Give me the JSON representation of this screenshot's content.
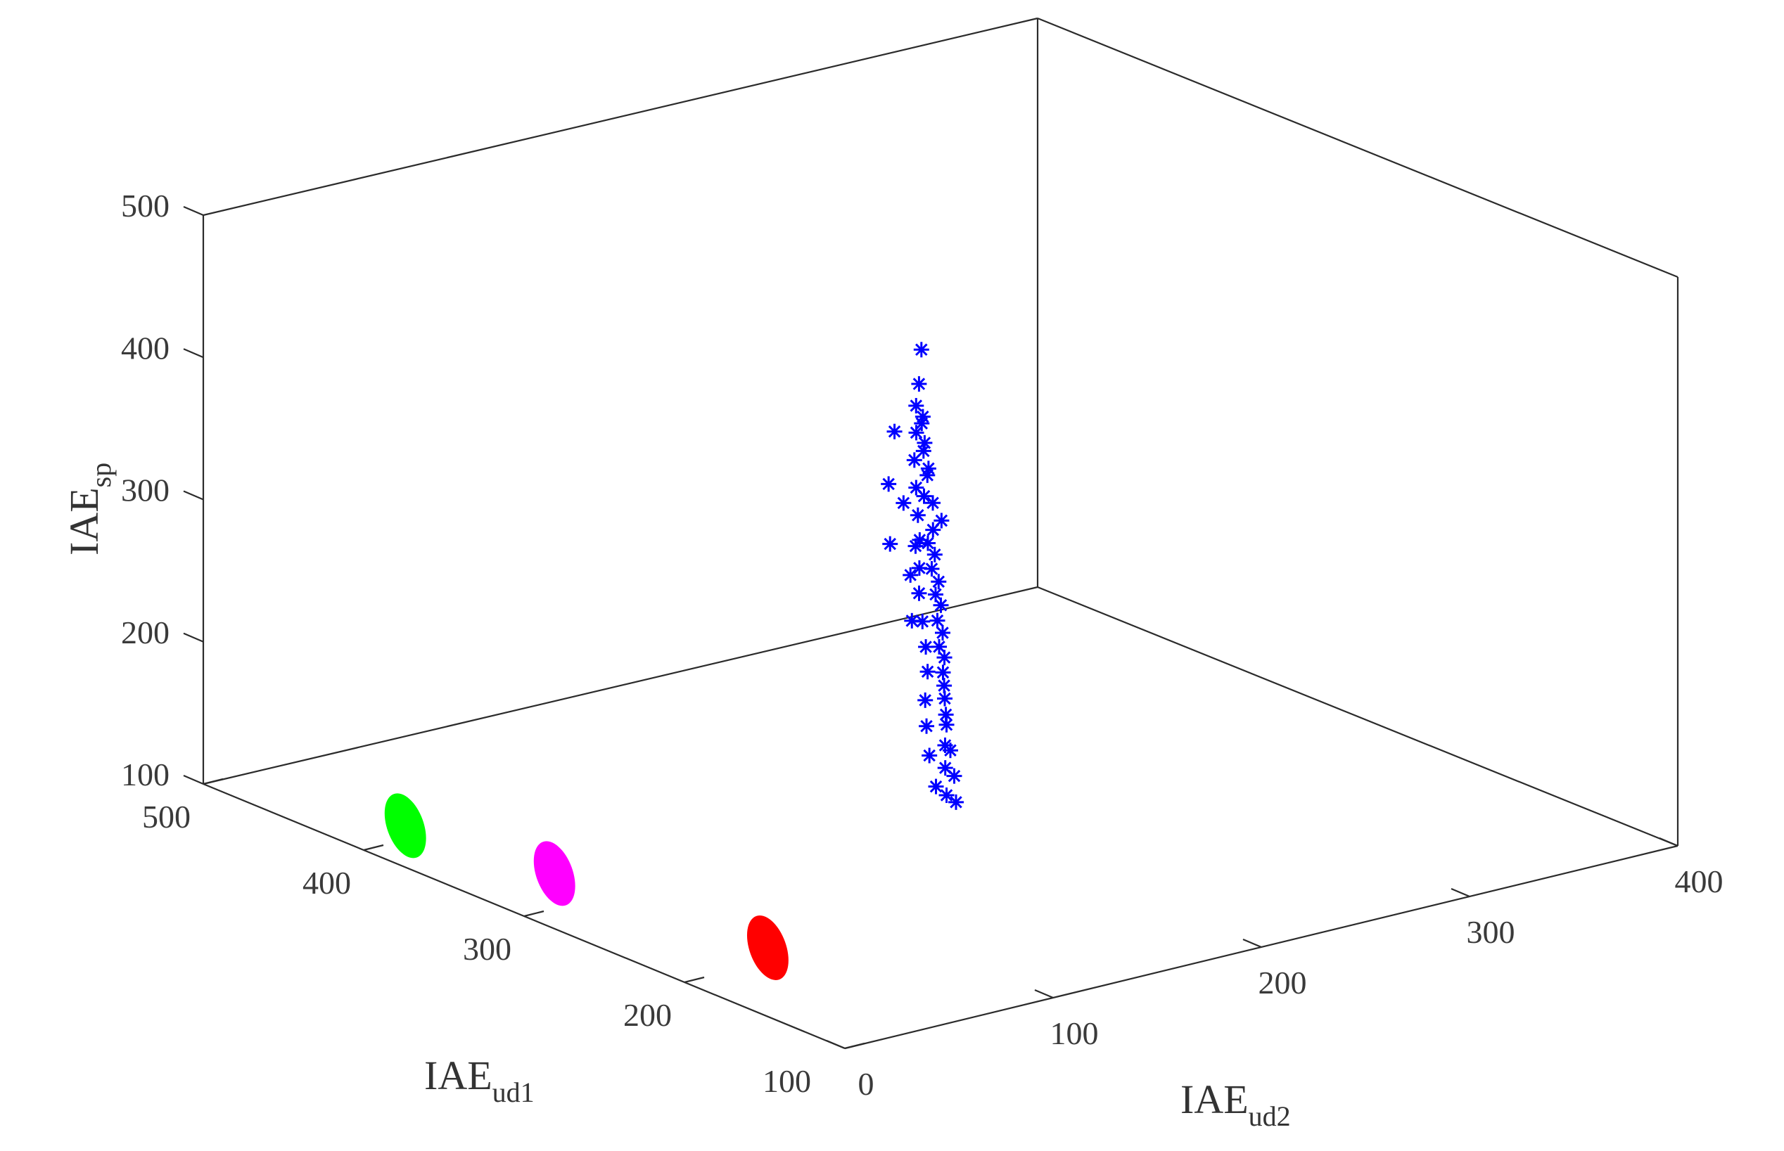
{
  "chart_data": {
    "type": "scatter3d",
    "title": "",
    "xlabel": {
      "base": "IAE",
      "sub": "ud1"
    },
    "ylabel": {
      "base": "IAE",
      "sub": "ud2"
    },
    "zlabel": {
      "base": "IAE",
      "sub": "sp"
    },
    "xlim": [
      100,
      500
    ],
    "ylim": [
      0,
      400
    ],
    "zlim": [
      100,
      500
    ],
    "xticks": [
      "100",
      "200",
      "300",
      "400",
      "500"
    ],
    "yticks": [
      "0",
      "100",
      "200",
      "300",
      "400"
    ],
    "zticks": [
      "100",
      "200",
      "300",
      "400",
      "500"
    ],
    "grid": false,
    "colors": {
      "blue": "#0000ff",
      "green": "#00ff00",
      "magenta": "#ff00ff",
      "red": "#ff0000",
      "axis": "#2b2b2b"
    },
    "series": [
      {
        "marker": "asterisk",
        "color": "blue",
        "points": [
          [
            180,
            115,
            195
          ],
          [
            185,
            118,
            210
          ],
          [
            190,
            120,
            225
          ],
          [
            195,
            122,
            240
          ],
          [
            200,
            125,
            255
          ],
          [
            205,
            128,
            270
          ],
          [
            210,
            130,
            285
          ],
          [
            215,
            133,
            300
          ],
          [
            220,
            136,
            315
          ],
          [
            225,
            138,
            330
          ],
          [
            230,
            140,
            345
          ],
          [
            228,
            145,
            360
          ],
          [
            235,
            142,
            375
          ],
          [
            240,
            148,
            390
          ],
          [
            245,
            150,
            405
          ],
          [
            250,
            153,
            420
          ],
          [
            255,
            155,
            440
          ],
          [
            260,
            160,
            460
          ],
          [
            248,
            135,
            380
          ],
          [
            238,
            128,
            345
          ],
          [
            182,
            112,
            200
          ],
          [
            188,
            116,
            215
          ],
          [
            192,
            119,
            228
          ],
          [
            198,
            124,
            245
          ],
          [
            203,
            127,
            262
          ],
          [
            208,
            131,
            278
          ],
          [
            213,
            134,
            292
          ],
          [
            218,
            137,
            308
          ],
          [
            222,
            139,
            322
          ],
          [
            227,
            141,
            338
          ],
          [
            232,
            144,
            352
          ],
          [
            236,
            147,
            368
          ],
          [
            242,
            149,
            384
          ],
          [
            247,
            151,
            398
          ],
          [
            252,
            154,
            414
          ],
          [
            186,
            110,
            205
          ],
          [
            194,
            113,
            222
          ],
          [
            201,
            117,
            238
          ],
          [
            207,
            121,
            252
          ],
          [
            212,
            126,
            268
          ],
          [
            217,
            129,
            282
          ],
          [
            223,
            132,
            296
          ],
          [
            229,
            135,
            312
          ],
          [
            234,
            139,
            326
          ],
          [
            239,
            143,
            342
          ],
          [
            244,
            146,
            356
          ],
          [
            249,
            149,
            372
          ],
          [
            254,
            152,
            388
          ],
          [
            258,
            156,
            404
          ],
          [
            262,
            159,
            420
          ],
          [
            214,
            120,
            305
          ],
          [
            224,
            127,
            330
          ],
          [
            240,
            136,
            370
          ],
          [
            256,
            144,
            410
          ],
          [
            226,
            131,
            348
          ]
        ]
      },
      {
        "marker": "filled",
        "color": "green",
        "points": [
          [
            400,
            20,
            110
          ]
        ]
      },
      {
        "marker": "filled",
        "color": "magenta",
        "points": [
          [
            320,
            30,
            110
          ]
        ]
      },
      {
        "marker": "filled",
        "color": "red",
        "points": [
          [
            200,
            40,
            110
          ]
        ]
      }
    ]
  }
}
